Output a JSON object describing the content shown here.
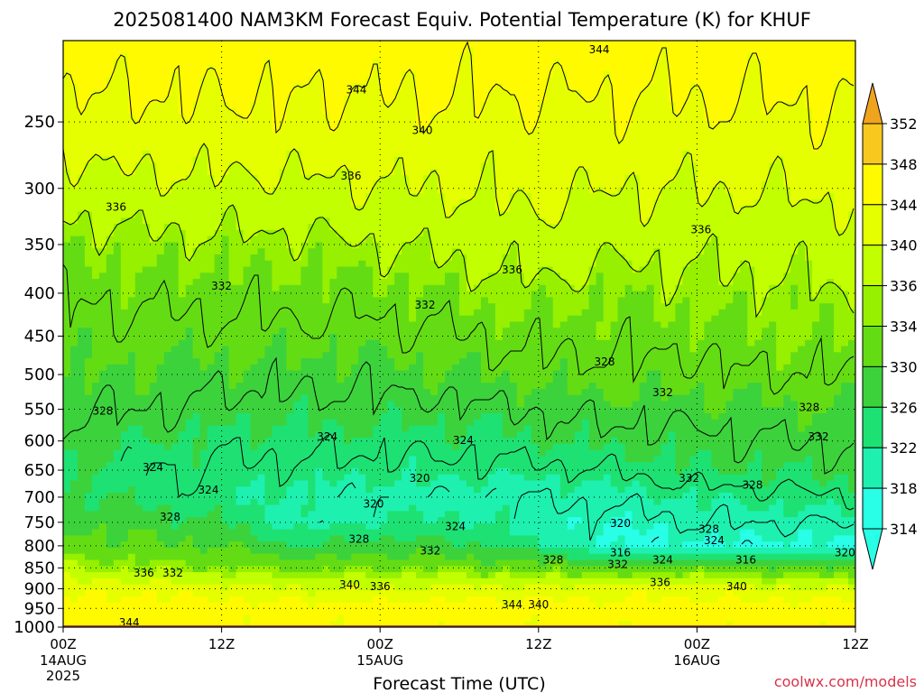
{
  "chart_data": {
    "type": "heatmap",
    "title": "2025081400 NAM3KM Forecast Equiv. Potential Temperature (K) for KHUF",
    "xlabel": "Forecast Time (UTC)",
    "ylabel": "",
    "x_ticks": [
      {
        "hour": 0,
        "label": "00Z",
        "date": "14AUG",
        "year": "2025"
      },
      {
        "hour": 12,
        "label": "12Z",
        "date": "",
        "year": ""
      },
      {
        "hour": 24,
        "label": "00Z",
        "date": "15AUG",
        "year": ""
      },
      {
        "hour": 36,
        "label": "12Z",
        "date": "",
        "year": ""
      },
      {
        "hour": 48,
        "label": "00Z",
        "date": "16AUG",
        "year": ""
      },
      {
        "hour": 60,
        "label": "12Z",
        "date": "",
        "year": ""
      }
    ],
    "xlim": [
      0,
      60
    ],
    "y_ticks": [
      250,
      300,
      350,
      400,
      450,
      500,
      550,
      600,
      650,
      700,
      750,
      800,
      850,
      900,
      950,
      1000
    ],
    "ylim": [
      1000,
      200
    ],
    "y_scale": "log (pressure, hPa)",
    "grid": true,
    "colorbar": {
      "ticks": [
        352,
        348,
        344,
        340,
        336,
        334,
        330,
        326,
        322,
        318,
        314
      ],
      "colors": [
        "#f0a41e",
        "#f8c81e",
        "#fffa00",
        "#e6ff00",
        "#c2ff00",
        "#96f000",
        "#64dc14",
        "#3cd23c",
        "#1ee173",
        "#1ef0af",
        "#28ffe6"
      ],
      "placement": "right"
    },
    "profiles": {
      "hours": [
        0,
        6,
        12,
        18,
        24,
        30,
        36,
        42,
        48,
        54,
        60
      ],
      "pressure_levels": [
        200,
        250,
        300,
        350,
        400,
        450,
        500,
        550,
        600,
        650,
        700,
        750,
        800,
        850,
        900,
        950,
        1000
      ],
      "theta_e_K": [
        [
          346,
          342,
          338,
          334,
          332,
          331,
          330,
          328,
          327,
          326,
          327,
          329,
          332,
          336,
          343,
          346,
          345
        ],
        [
          346,
          343,
          339,
          335,
          333,
          331,
          330,
          328,
          326,
          324,
          325,
          328,
          331,
          335,
          343,
          346,
          345
        ],
        [
          346,
          343,
          339,
          335,
          333,
          331,
          329,
          327,
          325,
          324,
          323,
          326,
          330,
          334,
          342,
          346,
          345
        ],
        [
          346,
          343,
          339,
          335,
          333,
          331,
          329,
          327,
          325,
          323,
          321,
          320,
          326,
          333,
          340,
          346,
          345
        ],
        [
          346,
          343,
          340,
          336,
          333,
          331,
          329,
          327,
          325,
          323,
          320,
          322,
          328,
          334,
          340,
          346,
          345
        ],
        [
          346,
          343,
          340,
          337,
          334,
          332,
          330,
          327,
          325,
          323,
          320,
          323,
          327,
          333,
          341,
          346,
          345
        ],
        [
          346,
          343,
          341,
          338,
          335,
          333,
          331,
          328,
          326,
          323,
          320,
          319,
          323,
          333,
          341,
          346,
          345
        ],
        [
          346,
          343,
          340,
          337,
          334,
          333,
          331,
          329,
          327,
          324,
          321,
          318,
          317,
          330,
          342,
          346,
          345
        ],
        [
          346,
          343,
          340,
          337,
          335,
          333,
          331,
          329,
          327,
          326,
          322,
          320,
          317,
          332,
          342,
          346,
          345
        ],
        [
          346,
          343,
          340,
          337,
          335,
          334,
          332,
          330,
          328,
          326,
          323,
          320,
          317,
          331,
          341,
          346,
          345
        ],
        [
          346,
          344,
          341,
          338,
          336,
          334,
          332,
          330,
          328,
          327,
          324,
          320,
          318,
          330,
          340,
          346,
          345
        ]
      ]
    },
    "contour_labels": [
      {
        "value": "344",
        "hour": 40.6,
        "p": 205
      },
      {
        "value": "344",
        "hour": 22.2,
        "p": 229
      },
      {
        "value": "340",
        "hour": 27.2,
        "p": 256
      },
      {
        "value": "336",
        "hour": 21.8,
        "p": 290
      },
      {
        "value": "336",
        "hour": 4.0,
        "p": 316
      },
      {
        "value": "336",
        "hour": 48.3,
        "p": 336
      },
      {
        "value": "336",
        "hour": 34.0,
        "p": 375
      },
      {
        "value": "332",
        "hour": 12.0,
        "p": 392
      },
      {
        "value": "332",
        "hour": 27.4,
        "p": 413
      },
      {
        "value": "328",
        "hour": 41.0,
        "p": 483
      },
      {
        "value": "332",
        "hour": 45.4,
        "p": 525
      },
      {
        "value": "328",
        "hour": 3.0,
        "p": 553
      },
      {
        "value": "328",
        "hour": 56.5,
        "p": 547
      },
      {
        "value": "324",
        "hour": 20.0,
        "p": 593
      },
      {
        "value": "324",
        "hour": 30.3,
        "p": 599
      },
      {
        "value": "332",
        "hour": 57.2,
        "p": 593
      },
      {
        "value": "324",
        "hour": 6.8,
        "p": 645
      },
      {
        "value": "324",
        "hour": 11.0,
        "p": 686
      },
      {
        "value": "320",
        "hour": 27.0,
        "p": 665
      },
      {
        "value": "332",
        "hour": 47.4,
        "p": 665
      },
      {
        "value": "328",
        "hour": 52.2,
        "p": 677
      },
      {
        "value": "320",
        "hour": 23.5,
        "p": 713
      },
      {
        "value": "328",
        "hour": 8.1,
        "p": 739
      },
      {
        "value": "320",
        "hour": 42.2,
        "p": 752
      },
      {
        "value": "324",
        "hour": 29.7,
        "p": 759
      },
      {
        "value": "328",
        "hour": 48.9,
        "p": 764
      },
      {
        "value": "328",
        "hour": 22.4,
        "p": 786
      },
      {
        "value": "324",
        "hour": 49.3,
        "p": 788
      },
      {
        "value": "332",
        "hour": 27.8,
        "p": 811
      },
      {
        "value": "316",
        "hour": 42.2,
        "p": 815
      },
      {
        "value": "316",
        "hour": 51.7,
        "p": 832
      },
      {
        "value": "320",
        "hour": 59.2,
        "p": 815
      },
      {
        "value": "328",
        "hour": 37.1,
        "p": 832
      },
      {
        "value": "324",
        "hour": 45.4,
        "p": 832
      },
      {
        "value": "332",
        "hour": 42.0,
        "p": 842
      },
      {
        "value": "336",
        "hour": 6.1,
        "p": 862
      },
      {
        "value": "332",
        "hour": 8.3,
        "p": 862
      },
      {
        "value": "336",
        "hour": 45.2,
        "p": 885
      },
      {
        "value": "340",
        "hour": 21.7,
        "p": 890
      },
      {
        "value": "336",
        "hour": 24.0,
        "p": 895
      },
      {
        "value": "340",
        "hour": 51.0,
        "p": 895
      },
      {
        "value": "344",
        "hour": 34.0,
        "p": 940
      },
      {
        "value": "340",
        "hour": 36.0,
        "p": 940
      },
      {
        "value": "344",
        "hour": 5.0,
        "p": 988
      }
    ],
    "ground": {
      "below_p": 995,
      "color": "#a0522d"
    }
  },
  "credit": "coolwx.com/models"
}
